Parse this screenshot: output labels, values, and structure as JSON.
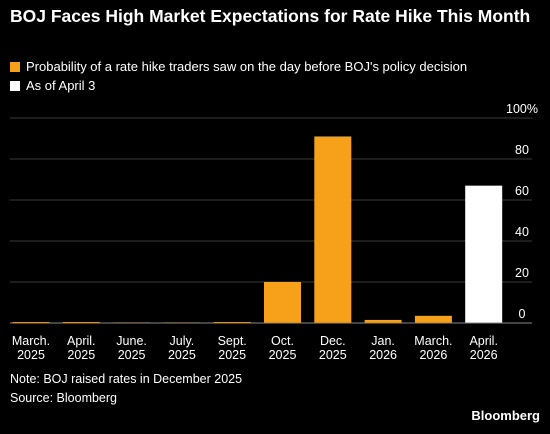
{
  "title": "BOJ Faces High Market Expectations for Rate Hike This Month",
  "legend": {
    "series1": "Probability of a rate hike traders saw on the day before BOJ's policy decision",
    "series2": "As of April 3"
  },
  "note": "Note: BOJ raised rates in December 2025",
  "source": "Source: Bloomberg",
  "brand": "Bloomberg",
  "colors": {
    "series1": "#f7a11a",
    "series2": "#ffffff",
    "grid": "#3a3a3a",
    "baseline": "#888888"
  },
  "chart_data": {
    "type": "bar",
    "categories": [
      [
        "March.",
        "2025"
      ],
      [
        "April.",
        "2025"
      ],
      [
        "June.",
        "2025"
      ],
      [
        "July.",
        "2025"
      ],
      [
        "Sept.",
        "2025"
      ],
      [
        "Oct.",
        "2025"
      ],
      [
        "Dec.",
        "2025"
      ],
      [
        "Jan.",
        "2026"
      ],
      [
        "March.",
        "2026"
      ],
      [
        "April.",
        "2026"
      ]
    ],
    "values": [
      0.5,
      0.5,
      0.3,
      0.3,
      0.5,
      20,
      91,
      1.5,
      3.5,
      67
    ],
    "series_index": [
      0,
      0,
      0,
      0,
      0,
      0,
      0,
      0,
      0,
      1
    ],
    "ylim": [
      0,
      100
    ],
    "yticks": [
      0,
      20,
      40,
      60,
      80,
      100
    ],
    "ytick_suffix_top": "%",
    "grid": true,
    "legend_position": "top-left"
  }
}
